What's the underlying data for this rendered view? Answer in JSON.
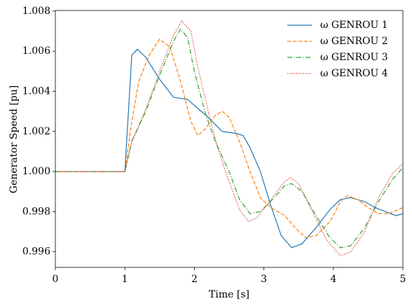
{
  "chart_data": {
    "type": "line",
    "xlabel": "Time [s]",
    "ylabel": "Generator Speed [pu]",
    "xlim": [
      0,
      5
    ],
    "ylim": [
      0.99522,
      1.00803
    ],
    "xticks": [
      0,
      1,
      2,
      3,
      4,
      5
    ],
    "yticks": [
      0.996,
      0.998,
      {
        "value": 1,
        "label": "1.000"
      },
      1.002,
      1.004,
      1.006,
      1.008
    ],
    "grid": false,
    "legend": "upper right",
    "series": [
      {
        "name": "ω GENROU 1",
        "color": "#1f77b4",
        "style": "solid",
        "x": [
          0,
          1.0,
          1.1,
          1.18,
          1.3,
          1.5,
          1.7,
          1.9,
          2.0,
          2.2,
          2.4,
          2.6,
          2.7,
          2.8,
          2.95,
          3.1,
          3.25,
          3.4,
          3.55,
          3.75,
          3.95,
          4.1,
          4.25,
          4.45,
          4.6,
          4.75,
          4.9,
          5.0
        ],
        "values": [
          1.0,
          1.0,
          1.0058,
          1.0061,
          1.0057,
          1.0046,
          1.0037,
          1.0036,
          1.0033,
          1.0027,
          1.002,
          1.0019,
          1.0018,
          1.0012,
          1.0,
          0.9983,
          0.9968,
          0.9962,
          0.9964,
          0.9972,
          0.9981,
          0.9986,
          0.9987,
          0.9985,
          0.9982,
          0.998,
          0.9978,
          0.9979
        ]
      },
      {
        "name": "ω GENROU 2",
        "color": "#ff7f0e",
        "style": "dashed",
        "x": [
          0,
          1.0,
          1.1,
          1.2,
          1.35,
          1.5,
          1.65,
          1.8,
          1.95,
          2.05,
          2.15,
          2.3,
          2.4,
          2.5,
          2.65,
          2.8,
          2.95,
          3.1,
          3.3,
          3.45,
          3.6,
          3.75,
          3.95,
          4.1,
          4.2,
          4.35,
          4.5,
          4.65,
          4.8,
          5.0
        ],
        "values": [
          1.0,
          1.0,
          1.0025,
          1.0045,
          1.0058,
          1.0066,
          1.0062,
          1.0045,
          1.0025,
          1.0018,
          1.0021,
          1.0028,
          1.003,
          1.0027,
          1.0015,
          1.0,
          0.9987,
          0.9982,
          0.9978,
          0.9972,
          0.9967,
          0.9968,
          0.9975,
          0.9985,
          0.9988,
          0.9986,
          0.9982,
          0.9979,
          0.9979,
          0.9982
        ]
      },
      {
        "name": "ω GENROU 3",
        "color": "#2ca02c",
        "style": "dashdot",
        "x": [
          0,
          1.0,
          1.1,
          1.3,
          1.5,
          1.7,
          1.8,
          1.9,
          2.0,
          2.15,
          2.3,
          2.5,
          2.65,
          2.8,
          2.95,
          3.15,
          3.3,
          3.4,
          3.55,
          3.75,
          3.95,
          4.1,
          4.25,
          4.45,
          4.65,
          4.85,
          5.0
        ],
        "values": [
          1.0,
          1.0,
          1.0015,
          1.003,
          1.0048,
          1.0065,
          1.0071,
          1.0067,
          1.005,
          1.003,
          1.0015,
          1.0,
          0.9986,
          0.9979,
          0.998,
          0.9987,
          0.9993,
          0.9994,
          0.999,
          0.9978,
          0.9967,
          0.9962,
          0.9963,
          0.9972,
          0.9985,
          0.9996,
          1.0002
        ]
      },
      {
        "name": "ω GENROU 4",
        "color": "#d62728",
        "style": "dotted",
        "x": [
          0,
          1.0,
          1.1,
          1.3,
          1.5,
          1.7,
          1.82,
          1.95,
          2.05,
          2.2,
          2.35,
          2.5,
          2.65,
          2.78,
          2.9,
          3.1,
          3.3,
          3.38,
          3.5,
          3.7,
          3.9,
          4.1,
          4.25,
          4.45,
          4.65,
          4.85,
          5.0
        ],
        "values": [
          1.0,
          1.0,
          1.0015,
          1.0031,
          1.005,
          1.0068,
          1.0075,
          1.007,
          1.0052,
          1.003,
          1.001,
          0.9995,
          0.9981,
          0.9975,
          0.9977,
          0.9986,
          0.9995,
          0.9997,
          0.9994,
          0.998,
          0.9966,
          0.9958,
          0.996,
          0.997,
          0.9987,
          0.9999,
          1.0004
        ]
      }
    ]
  }
}
